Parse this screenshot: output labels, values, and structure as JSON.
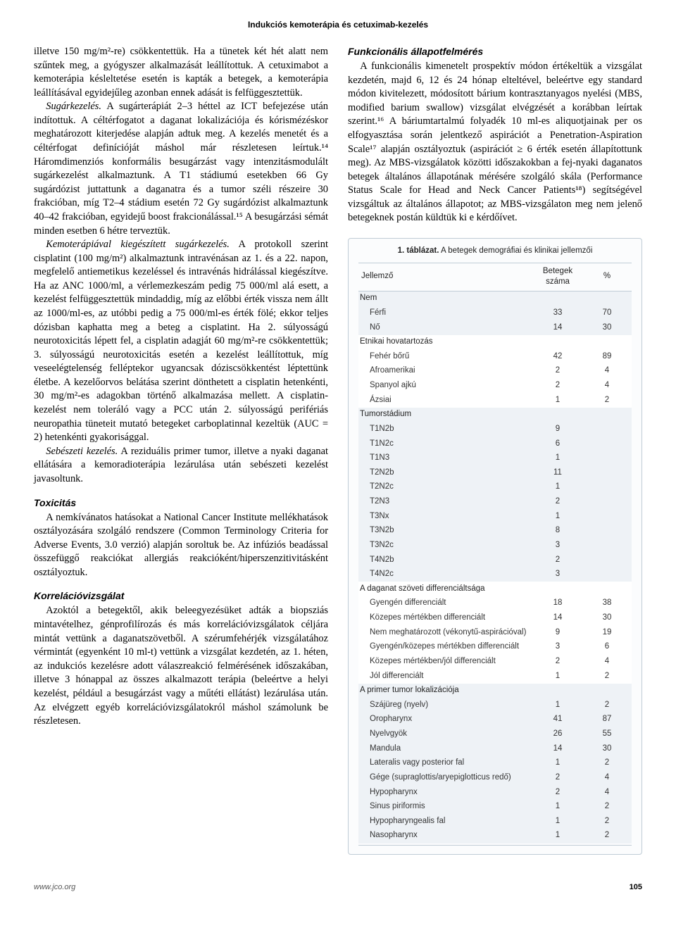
{
  "running_head": "Indukciós kemoterápia és cetuximab-kezelés",
  "colors": {
    "text": "#000000",
    "body_bg": "#ffffff",
    "table_border": "#c0ccd6",
    "table_band": "#eef2f6",
    "table_wrap_bg": "#fbfcfd"
  },
  "left_col": {
    "p1": "illetve 150 mg/m²-re) csökkentettük. Ha a tünetek két hét alatt nem szűntek meg, a gyógyszer alkalmazását leállítottuk. A cetuximabot a kemoterápia késleltetése esetén is kapták a betegek, a kemoterápia leállításával egyidejűleg azonban ennek adását is felfüggesztettük.",
    "p2_lead_italic": "Sugárkezelés.",
    "p2": " A sugárterápiát 2–3 héttel az ICT befejezése után indítottuk. A céltérfogatot a daganat lokalizációja és kórismézéskor meghatározott kiterjedése alapján adtuk meg. A kezelés menetét és a céltérfogat definícióját máshol már részletesen leírtuk.¹⁴ Háromdimenziós konformális besugárzást vagy intenzitásmodulált sugárkezelést alkalmaztunk. A T1 stádiumú esetekben 66 Gy sugárdózist juttattunk a daganatra és a tumor széli részeire 30 frakcióban, míg T2–4 stádium esetén 72 Gy sugárdózist alkalmaztunk 40–42 frakcióban, egyidejű boost frakcionálással.¹⁵ A besugárzási sémát minden esetben 6 hétre terveztük.",
    "p3_lead_italic": "Kemoterápiával kiegészített sugárkezelés.",
    "p3": " A protokoll szerint cisplatint (100 mg/m²) alkalmaztunk intravénásan az 1. és a 22. napon, megfelelő antiemetikus kezeléssel és intravénás hidrálással kiegészítve. Ha az ANC 1000/ml, a vérlemezkeszám pedig 75 000/ml alá esett, a kezelést felfüggesztettük mindaddig, míg az előbbi érték vissza nem állt az 1000/ml-es, az utóbbi pedig a 75 000/ml-es érték fölé; ekkor teljes dózisban kaphatta meg a beteg a cisplatint. Ha 2. súlyosságú neurotoxicitás lépett fel, a cisplatin adagját 60 mg/m²-re csökkentettük; 3. súlyosságú neurotoxicitás esetén a kezelést leállítottuk, míg veseelégtelenség felléptekor ugyancsak dóziscsökkentést léptettünk életbe. A kezelőorvos belátása szerint dönthetett a cisplatin hetenkénti, 30 mg/m²-es adagokban történő alkalmazása mellett. A cisplatin-kezelést nem toleráló vagy a PCC után 2. súlyosságú perifériás neuropathia tüneteit mutató betegeket carboplatinnal kezeltük (AUC = 2) hetenkénti gyakorisággal.",
    "p4_lead_italic": "Sebészeti kezelés.",
    "p4": " A reziduális primer tumor, illetve a nyaki daganat ellátására a kemoradioterápia lezárulása után sebészeti kezelést javasoltunk.",
    "h_tox": "Toxicitás",
    "p_tox": "A nemkívánatos hatásokat a National Cancer Institute mellékhatások osztályozására szolgáló rendszere (Common Terminology Criteria for Adverse Events, 3.0 verzió) alapján soroltuk be. Az infúziós beadással összefüggő reakciókat allergiás reakcióként/hiperszenzitivitásként osztályoztuk.",
    "h_corr": "Korrelációvizsgálat",
    "p_corr": "Azoktól a betegektől, akik beleegyezésüket adták a biopsziás mintavételhez, génprofilírozás és más korrelációvizsgálatok céljára mintát vettünk a daganatszövetből. A szérumfehérjék vizsgálatához vérmintát (egyenként 10 ml-t) vettünk a vizsgálat kezdetén, az 1. héten, az indukciós kezelésre adott válaszreakció felmérésének időszakában, illetve 3 hónappal az összes alkalmazott terápia (beleértve a helyi kezelést, például a besugárzást vagy a műtéti ellátást) lezárulása után. Az elvégzett egyéb korrelációvizsgálatokról máshol számolunk be részletesen."
  },
  "right_col": {
    "h_func": "Funkcionális állapotfelmérés",
    "p_func": "A funkcionális kimenetelt prospektív módon értékeltük a vizsgálat kezdetén, majd 6, 12 és 24 hónap elteltével, beleértve egy standard módon kivitelezett, módosított bárium kontrasztanyagos nyelési (MBS, modified barium swallow) vizsgálat elvégzését a korábban leírtak szerint.¹⁶ A báriumtartalmú folyadék 10 ml-es aliquotjainak per os elfogyasztása során jelentkező aspirációt a Penetration-Aspiration Scale¹⁷ alapján osztályoztuk (aspirációt ≥ 6 érték esetén állapítottunk meg). Az MBS-vizsgálatok közötti időszakokban a fej-nyaki daganatos betegek általános állapotának mérésére szolgáló skála (Performance Status Scale for Head and Neck Cancer Patients¹⁸) segítségével vizsgáltuk az általános állapotot; az MBS-vizsgálaton meg nem jelenő betegeknek postán küldtük ki e kérdőívet."
  },
  "table1": {
    "title_prefix": "1. táblázat.",
    "title_rest": " A betegek demográfiai és klinikai jellemzői",
    "columns": [
      "Jellemző",
      "Betegek száma",
      "%"
    ],
    "col_widths": [
      "auto",
      "70px",
      "70px"
    ],
    "font_family": "Arial, Helvetica, sans-serif",
    "fontsize": 11.5,
    "border_color": "#c0ccd6",
    "band_color": "#eef2f6",
    "rows": [
      {
        "type": "group",
        "band": "band",
        "label": "Nem",
        "n": "",
        "pct": ""
      },
      {
        "type": "item",
        "band": "band",
        "label": "Férfi",
        "n": "33",
        "pct": "70"
      },
      {
        "type": "item",
        "band": "band",
        "label": "Nő",
        "n": "14",
        "pct": "30"
      },
      {
        "type": "group",
        "band": "band-alt",
        "label": "Etnikai hovatartozás",
        "n": "",
        "pct": ""
      },
      {
        "type": "item",
        "band": "band-alt",
        "label": "Fehér bőrű",
        "n": "42",
        "pct": "89"
      },
      {
        "type": "item",
        "band": "band-alt",
        "label": "Afroamerikai",
        "n": "2",
        "pct": "4"
      },
      {
        "type": "item",
        "band": "band-alt",
        "label": "Spanyol ajkú",
        "n": "2",
        "pct": "4"
      },
      {
        "type": "item",
        "band": "band-alt",
        "label": "Ázsiai",
        "n": "1",
        "pct": "2"
      },
      {
        "type": "group",
        "band": "band",
        "label": "Tumorstádium",
        "n": "",
        "pct": ""
      },
      {
        "type": "item",
        "band": "band",
        "label": "T1N2b",
        "n": "9",
        "pct": ""
      },
      {
        "type": "item",
        "band": "band",
        "label": "T1N2c",
        "n": "6",
        "pct": ""
      },
      {
        "type": "item",
        "band": "band",
        "label": "T1N3",
        "n": "1",
        "pct": ""
      },
      {
        "type": "item",
        "band": "band",
        "label": "T2N2b",
        "n": "11",
        "pct": ""
      },
      {
        "type": "item",
        "band": "band",
        "label": "T2N2c",
        "n": "1",
        "pct": ""
      },
      {
        "type": "item",
        "band": "band",
        "label": "T2N3",
        "n": "2",
        "pct": ""
      },
      {
        "type": "item",
        "band": "band",
        "label": "T3Nx",
        "n": "1",
        "pct": ""
      },
      {
        "type": "item",
        "band": "band",
        "label": "T3N2b",
        "n": "8",
        "pct": ""
      },
      {
        "type": "item",
        "band": "band",
        "label": "T3N2c",
        "n": "3",
        "pct": ""
      },
      {
        "type": "item",
        "band": "band",
        "label": "T4N2b",
        "n": "2",
        "pct": ""
      },
      {
        "type": "item",
        "band": "band",
        "label": "T4N2c",
        "n": "3",
        "pct": ""
      },
      {
        "type": "group",
        "band": "band-alt",
        "label": "A daganat szöveti differenciáltsága",
        "n": "",
        "pct": ""
      },
      {
        "type": "item",
        "band": "band-alt",
        "label": "Gyengén differenciált",
        "n": "18",
        "pct": "38"
      },
      {
        "type": "item",
        "band": "band-alt",
        "label": "Közepes mértékben differenciált",
        "n": "14",
        "pct": "30"
      },
      {
        "type": "item",
        "band": "band-alt",
        "label": "Nem meghatározott (vékonytű-aspirációval)",
        "n": "9",
        "pct": "19"
      },
      {
        "type": "item",
        "band": "band-alt",
        "label": "Gyengén/közepes mértékben differenciált",
        "n": "3",
        "pct": "6"
      },
      {
        "type": "item",
        "band": "band-alt",
        "label": "Közepes mértékben/jól differenciált",
        "n": "2",
        "pct": "4"
      },
      {
        "type": "item",
        "band": "band-alt",
        "label": "Jól differenciált",
        "n": "1",
        "pct": "2"
      },
      {
        "type": "group",
        "band": "band",
        "label": "A primer tumor lokalizációja",
        "n": "",
        "pct": ""
      },
      {
        "type": "item",
        "band": "band",
        "label": "Szájüreg (nyelv)",
        "n": "1",
        "pct": "2"
      },
      {
        "type": "item",
        "band": "band",
        "label": "Oropharynx",
        "n": "41",
        "pct": "87"
      },
      {
        "type": "item",
        "band": "band",
        "label": "Nyelvgyök",
        "n": "26",
        "pct": "55"
      },
      {
        "type": "item",
        "band": "band",
        "label": "Mandula",
        "n": "14",
        "pct": "30"
      },
      {
        "type": "item",
        "band": "band",
        "label": "Lateralis vagy posterior fal",
        "n": "1",
        "pct": "2"
      },
      {
        "type": "item",
        "band": "band",
        "label": "Gége (supraglottis/aryepiglotticus redő)",
        "n": "2",
        "pct": "4"
      },
      {
        "type": "item",
        "band": "band",
        "label": "Hypopharynx",
        "n": "2",
        "pct": "4"
      },
      {
        "type": "item",
        "band": "band",
        "label": "Sinus piriformis",
        "n": "1",
        "pct": "2"
      },
      {
        "type": "item",
        "band": "band",
        "label": "Hypopharyngealis fal",
        "n": "1",
        "pct": "2"
      },
      {
        "type": "item",
        "band": "band",
        "label": "Nasopharynx",
        "n": "1",
        "pct": "2"
      }
    ]
  },
  "footer": {
    "site": "www.jco.org",
    "page": "105"
  }
}
